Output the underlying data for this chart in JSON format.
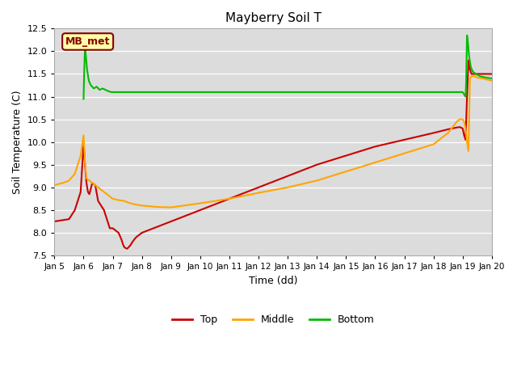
{
  "title": "Mayberry Soil T",
  "xlabel": "Time (dd)",
  "ylabel": "Soil Temperature (C)",
  "ylim": [
    7.5,
    12.5
  ],
  "xlim": [
    0,
    15
  ],
  "yticks": [
    7.5,
    8.0,
    8.5,
    9.0,
    9.5,
    10.0,
    10.5,
    11.0,
    11.5,
    12.0,
    12.5
  ],
  "xtick_labels": [
    "Jan 5",
    "Jan 6",
    "Jan 7",
    "Jan 8",
    "Jan 9",
    "Jan 10",
    "Jan 11",
    "Jan 12",
    "Jan 13",
    "Jan 14",
    "Jan 15",
    "Jan 16",
    "Jan 17",
    "Jan 18",
    "Jan 19",
    "Jan 20"
  ],
  "bg_color": "#dcdcdc",
  "fig_bg": "#ffffff",
  "line_top_color": "#cc0000",
  "line_middle_color": "#ffa500",
  "line_bottom_color": "#00bb00",
  "annotation_text": "MB_met",
  "annotation_bg": "#ffffaa",
  "annotation_border": "#8b0000",
  "legend_labels": [
    "Top",
    "Middle",
    "Bottom"
  ],
  "legend_colors": [
    "#cc0000",
    "#ffa500",
    "#00bb00"
  ],
  "top_x": [
    0.0,
    0.3,
    0.5,
    0.7,
    0.9,
    1.0,
    1.05,
    1.1,
    1.15,
    1.2,
    1.3,
    1.4,
    1.5,
    1.6,
    1.7,
    1.8,
    1.9,
    2.0,
    2.1,
    2.2,
    2.3,
    2.35,
    2.4,
    2.45,
    2.5,
    2.6,
    2.7,
    2.8,
    2.9,
    3.0,
    4.0,
    5.0,
    6.0,
    7.0,
    8.0,
    9.0,
    10.0,
    11.0,
    12.0,
    13.0,
    13.5,
    13.8,
    13.9,
    14.0,
    14.05,
    14.1,
    14.15,
    14.2,
    14.25,
    14.3,
    14.4,
    14.5,
    14.7,
    15.0
  ],
  "top_y": [
    8.25,
    8.28,
    8.3,
    8.5,
    8.9,
    9.95,
    9.5,
    9.1,
    8.9,
    8.85,
    9.1,
    9.05,
    8.7,
    8.6,
    8.5,
    8.3,
    8.1,
    8.1,
    8.05,
    8.0,
    7.85,
    7.75,
    7.68,
    7.66,
    7.65,
    7.72,
    7.82,
    7.9,
    7.95,
    8.0,
    8.25,
    8.5,
    8.75,
    9.0,
    9.25,
    9.5,
    9.7,
    9.9,
    10.05,
    10.2,
    10.28,
    10.32,
    10.33,
    10.3,
    10.15,
    10.05,
    11.0,
    11.8,
    11.6,
    11.5,
    11.5,
    11.5,
    11.5,
    11.5
  ],
  "mid_x": [
    0.0,
    0.3,
    0.5,
    0.7,
    0.9,
    1.0,
    1.05,
    1.1,
    1.2,
    1.3,
    1.4,
    1.5,
    1.6,
    1.7,
    1.8,
    1.9,
    2.0,
    2.2,
    2.4,
    2.6,
    2.8,
    3.0,
    3.5,
    4.0,
    5.0,
    6.0,
    7.0,
    8.0,
    9.0,
    10.0,
    11.0,
    12.0,
    13.0,
    13.5,
    13.8,
    13.9,
    14.0,
    14.05,
    14.1,
    14.15,
    14.2,
    14.25,
    14.3,
    14.4,
    14.5,
    14.7,
    15.0
  ],
  "mid_y": [
    9.05,
    9.1,
    9.15,
    9.3,
    9.7,
    10.15,
    9.55,
    9.2,
    9.15,
    9.1,
    9.05,
    9.0,
    8.95,
    8.9,
    8.85,
    8.8,
    8.75,
    8.72,
    8.7,
    8.65,
    8.62,
    8.6,
    8.57,
    8.56,
    8.65,
    8.75,
    8.88,
    9.0,
    9.15,
    9.35,
    9.55,
    9.75,
    9.95,
    10.2,
    10.45,
    10.5,
    10.5,
    10.45,
    10.3,
    10.0,
    9.8,
    11.4,
    11.45,
    11.45,
    11.42,
    11.4,
    11.35
  ],
  "bot_x": [
    1.0,
    1.02,
    1.05,
    1.08,
    1.12,
    1.18,
    1.25,
    1.35,
    1.45,
    1.55,
    1.65,
    1.75,
    1.85,
    1.95,
    2.0,
    2.2,
    2.5,
    3.0,
    4.0,
    5.0,
    7.0,
    9.0,
    11.0,
    13.0,
    13.5,
    13.8,
    13.9,
    14.0,
    14.05,
    14.1,
    14.12,
    14.15,
    14.18,
    14.22,
    14.28,
    14.35,
    14.45,
    14.6,
    14.8,
    15.0
  ],
  "bot_y": [
    10.95,
    11.5,
    12.1,
    11.9,
    11.6,
    11.35,
    11.25,
    11.18,
    11.22,
    11.15,
    11.18,
    11.15,
    11.12,
    11.1,
    11.1,
    11.1,
    11.1,
    11.1,
    11.1,
    11.1,
    11.1,
    11.1,
    11.1,
    11.1,
    11.1,
    11.1,
    11.1,
    11.1,
    11.05,
    11.0,
    11.3,
    12.35,
    12.2,
    11.9,
    11.65,
    11.55,
    11.5,
    11.45,
    11.42,
    11.4
  ]
}
